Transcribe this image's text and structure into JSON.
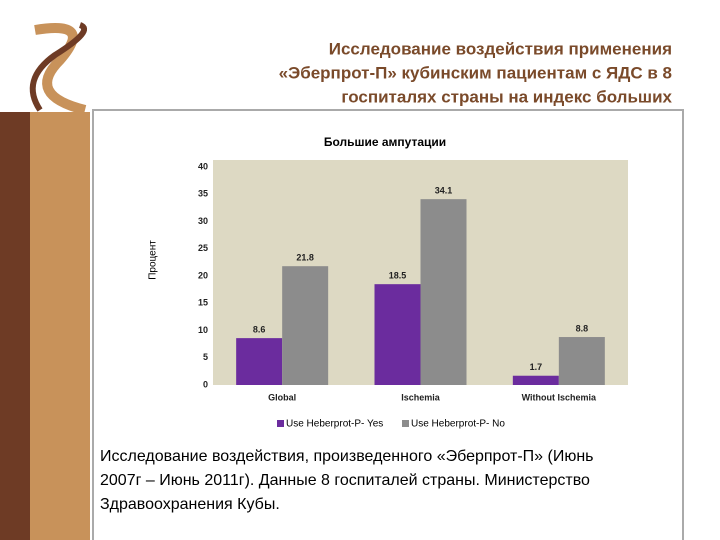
{
  "slide": {
    "title_lines": [
      "Исследование  воздействия применения",
      "«Эберпрот-П» кубинским пациентам с ЯДС в 8",
      "госпиталях страны на индекс больших"
    ],
    "footnote_lines": [
      "Исследование воздействия, произведенного «Эберпрот-П» (Июнь",
      "2007г – Июнь 2011г). Данные 8 госпиталей страны.  Министерство",
      "Здравоохранения Кубы."
    ]
  },
  "chart_data": {
    "type": "bar",
    "title": "Большие ампутации",
    "y_label": "Процент",
    "categories": [
      "Global",
      "Ischemia",
      "Without Ischemia"
    ],
    "series": [
      {
        "name": "Use Heberprot-P- Yes",
        "color": "#6b2c9e",
        "values": [
          8.6,
          18.5,
          1.7
        ]
      },
      {
        "name": "Use Heberprot-P- No",
        "color": "#8c8c8c",
        "values": [
          21.8,
          34.1,
          8.8
        ]
      }
    ],
    "ylim": [
      0,
      40
    ],
    "yticks": [
      0,
      5,
      10,
      15,
      20,
      25,
      30,
      35,
      40
    ],
    "grid": false,
    "legend": "bottom"
  }
}
